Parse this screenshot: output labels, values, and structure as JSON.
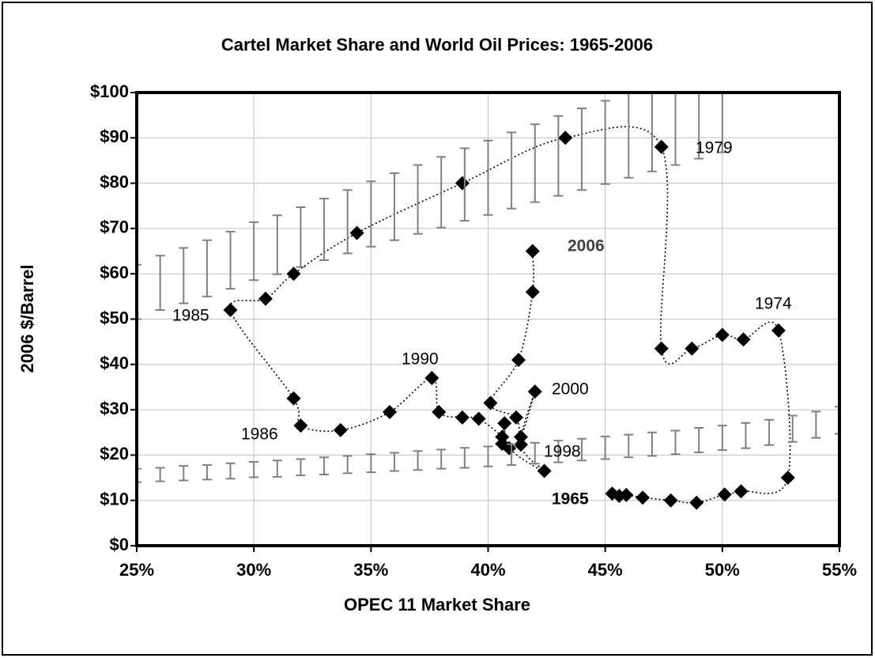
{
  "chart_data": {
    "type": "scatter",
    "title": "Cartel Market Share and World Oil Prices: 1965-2006",
    "x_label": "OPEC 11 Market Share",
    "y_label": "2006 $/Barrel",
    "xlim": [
      25,
      55
    ],
    "ylim": [
      0,
      100
    ],
    "xticks": [
      {
        "value": 25,
        "label": "25%"
      },
      {
        "value": 30,
        "label": "30%"
      },
      {
        "value": 35,
        "label": "35%"
      },
      {
        "value": 40,
        "label": "40%"
      },
      {
        "value": 45,
        "label": "45%"
      },
      {
        "value": 50,
        "label": "50%"
      },
      {
        "value": 55,
        "label": "55%"
      }
    ],
    "yticks": [
      {
        "value": 0,
        "label": "$0"
      },
      {
        "value": 10,
        "label": "$10"
      },
      {
        "value": 20,
        "label": "$20"
      },
      {
        "value": 30,
        "label": "$30"
      },
      {
        "value": 40,
        "label": "$40"
      },
      {
        "value": 50,
        "label": "$50"
      },
      {
        "value": 60,
        "label": "$60"
      },
      {
        "value": 70,
        "label": "$70"
      },
      {
        "value": 80,
        "label": "$80"
      },
      {
        "value": 90,
        "label": "$90"
      },
      {
        "value": 100,
        "label": "$100"
      }
    ],
    "grid": true,
    "series": [
      {
        "color": "#000000",
        "x": [
          45.3,
          45.6,
          45.9,
          46.6,
          47.8,
          48.9,
          50.1,
          50.8,
          52.8,
          52.4,
          50.9,
          50.0,
          48.7,
          47.4,
          47.4,
          43.3,
          38.9,
          34.4,
          31.7,
          30.5,
          29.0,
          31.7,
          32.0,
          33.7,
          35.8,
          37.6,
          37.9,
          38.9,
          39.6,
          40.6,
          40.6,
          40.7,
          40.9,
          42.4,
          41.4,
          42.0,
          41.4,
          41.2,
          40.1,
          41.3,
          41.9,
          41.9
        ],
        "values": [
          11.5,
          11,
          11.2,
          10.6,
          10,
          9.5,
          11.3,
          12,
          15,
          47.5,
          45.5,
          46.5,
          43.5,
          43.5,
          88,
          90,
          80,
          69,
          60,
          54.5,
          52,
          32.5,
          26.5,
          25.5,
          29.5,
          37,
          29.5,
          28.3,
          28,
          24,
          22.5,
          27,
          21.5,
          16.5,
          22.3,
          34,
          24,
          28.3,
          31.5,
          41,
          56,
          65
        ]
      },
      {
        "color": "#808080",
        "x": [
          25,
          26,
          27,
          28,
          29,
          30,
          31,
          32,
          33,
          34,
          35,
          36,
          37,
          38,
          39,
          40,
          41,
          42,
          43,
          44,
          45,
          46,
          47,
          48,
          49,
          50
        ],
        "values": [
          56,
          58,
          59.6,
          61.2,
          63,
          65,
          66.4,
          68.1,
          69.8,
          71.5,
          73.2,
          74.8,
          76.4,
          78,
          79.7,
          81.2,
          82.8,
          84.4,
          86,
          87.5,
          89,
          90.6,
          92.2,
          93.8,
          95.4,
          97
        ],
        "errors": [
          6,
          6,
          6.1,
          6.2,
          6.3,
          6.4,
          6.5,
          6.6,
          6.8,
          7,
          7.2,
          7.4,
          7.6,
          7.8,
          8,
          8.2,
          8.4,
          8.6,
          8.8,
          9,
          9.2,
          9.4,
          9.6,
          9.8,
          10,
          10.2
        ]
      },
      {
        "color": "#808080",
        "x": [
          25,
          26,
          27,
          28,
          29,
          30,
          31,
          32,
          33,
          34,
          35,
          36,
          37,
          38,
          39,
          40,
          41,
          42,
          43,
          44,
          45,
          46,
          47,
          48,
          49,
          50,
          51,
          52,
          53,
          54,
          55
        ],
        "values": [
          15.5,
          15.7,
          16,
          16.2,
          16.5,
          16.8,
          17,
          17.3,
          17.6,
          17.9,
          18.2,
          18.5,
          18.8,
          19.1,
          19.4,
          19.7,
          20.1,
          20.4,
          20.8,
          21.2,
          21.6,
          22,
          22.4,
          22.8,
          23.3,
          23.8,
          24.3,
          25,
          25.8,
          26.7,
          27.7
        ],
        "errors": [
          1.5,
          1.5,
          1.6,
          1.6,
          1.7,
          1.7,
          1.8,
          1.8,
          1.9,
          1.9,
          2,
          2,
          2.1,
          2.1,
          2.2,
          2.2,
          2.3,
          2.3,
          2.4,
          2.4,
          2.5,
          2.5,
          2.6,
          2.6,
          2.7,
          2.7,
          2.8,
          2.8,
          2.9,
          2.9,
          3
        ]
      }
    ],
    "annotations": [
      "1979",
      "2006",
      "1974",
      "1985",
      "1990",
      "2000",
      "1986",
      "1998",
      "1965"
    ]
  }
}
